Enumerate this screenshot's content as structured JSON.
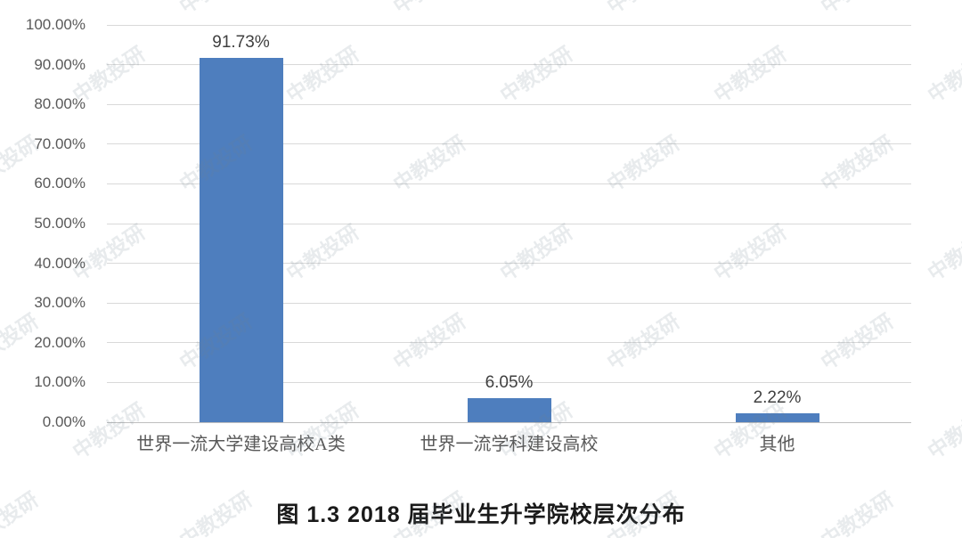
{
  "watermark": {
    "text": "中教投研"
  },
  "chart_data": {
    "type": "bar",
    "title": "图 1.3 2018 届毕业生升学院校层次分布",
    "categories": [
      "世界一流大学建设高校A类",
      "世界一流学科建设高校",
      "其他"
    ],
    "values": [
      91.73,
      6.05,
      2.22
    ],
    "value_labels": [
      "91.73%",
      "6.05%",
      "2.22%"
    ],
    "y_ticks": [
      "100.00%",
      "90.00%",
      "80.00%",
      "70.00%",
      "60.00%",
      "50.00%",
      "40.00%",
      "30.00%",
      "20.00%",
      "10.00%",
      "0.00%"
    ],
    "ylim": [
      0,
      100
    ],
    "grid": true,
    "legend": "none",
    "xlabel": "",
    "ylabel": "",
    "colors": {
      "bar": "#4E7EBE",
      "gridline": "#D9D9D9",
      "axis_line": "#BFBFBF",
      "tick_label": "#595959",
      "data_label": "#404040",
      "category_label": "#595959",
      "title": "#1A1A1A",
      "background": "#FFFFFF"
    }
  }
}
